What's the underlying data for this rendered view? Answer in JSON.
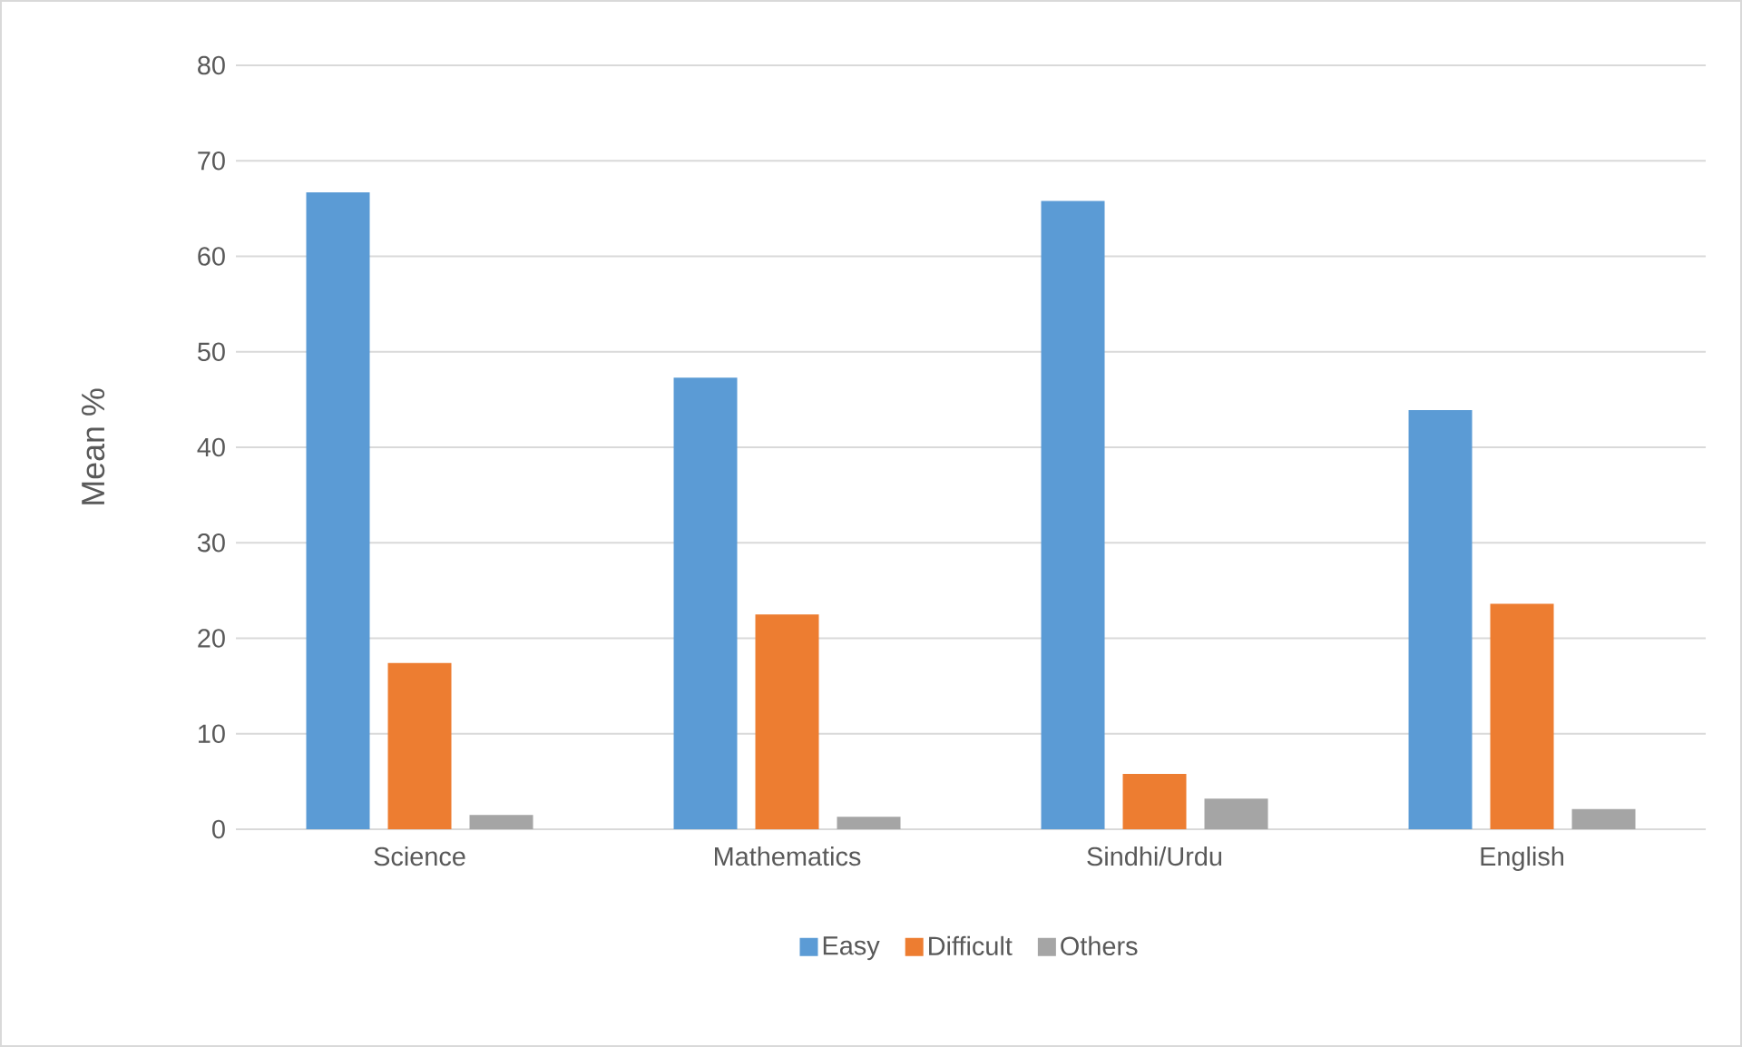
{
  "chart_data": {
    "type": "bar",
    "ylabel": "Mean %",
    "categories": [
      "Science",
      "Mathematics",
      "Sindhi/Urdu",
      "English"
    ],
    "series": [
      {
        "name": "Easy",
        "color": "#5b9bd5",
        "values": [
          66.7,
          47.3,
          65.8,
          43.9
        ]
      },
      {
        "name": "Difficult",
        "color": "#ed7d31",
        "values": [
          17.4,
          22.5,
          5.8,
          23.6
        ]
      },
      {
        "name": "Others",
        "color": "#a5a5a5",
        "values": [
          1.5,
          1.3,
          3.2,
          2.1
        ]
      }
    ],
    "ylim": [
      0,
      80
    ],
    "yticks": [
      0,
      10,
      20,
      30,
      40,
      50,
      60,
      70,
      80
    ],
    "grid": "y",
    "legend": "bottom"
  }
}
